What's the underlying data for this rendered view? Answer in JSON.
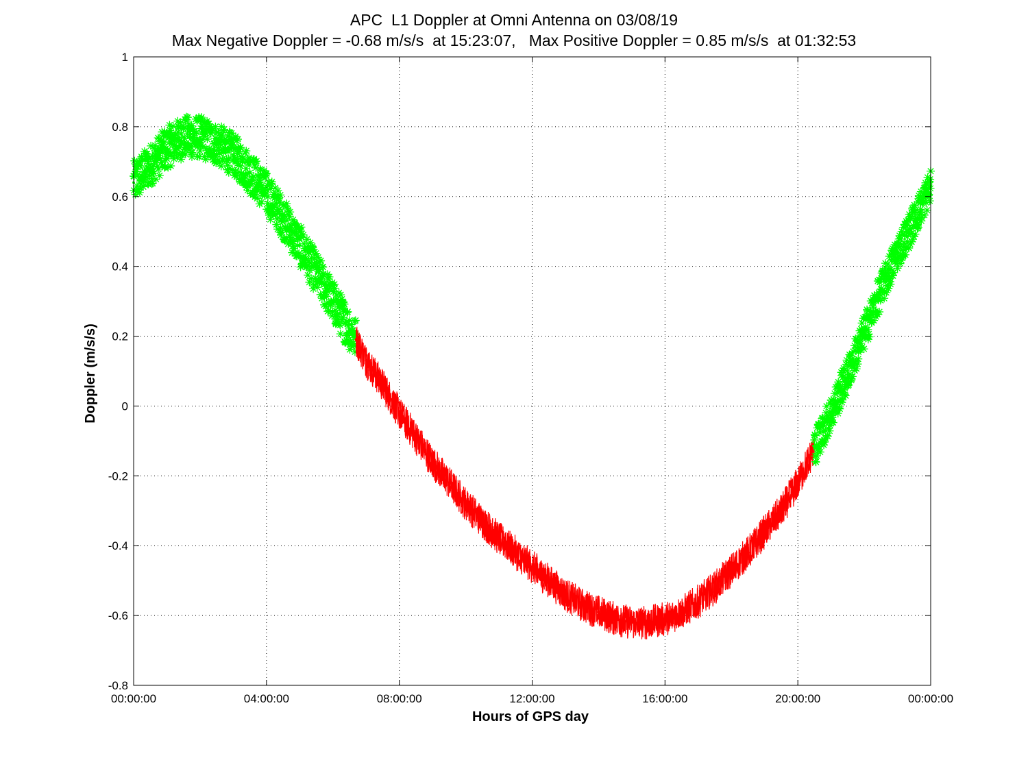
{
  "chart_data": {
    "type": "scatter",
    "title": "APC  L1 Doppler at Omni Antenna on 03/08/19",
    "subtitle": "Max Negative Doppler = -0.68 m/s/s  at 15:23:07,   Max Positive Doppler = 0.85 m/s/s  at 01:32:53",
    "xlabel": "Hours of GPS day",
    "ylabel": "Doppler (m/s/s)",
    "xlim": [
      0,
      24
    ],
    "ylim": [
      -0.8,
      1
    ],
    "x_unit": "hours",
    "x_tick_values": [
      0,
      4,
      8,
      12,
      16,
      20,
      24
    ],
    "x_tick_labels": [
      "00:00:00",
      "04:00:00",
      "08:00:00",
      "12:00:00",
      "16:00:00",
      "20:00:00",
      "00:00:00"
    ],
    "y_tick_values": [
      -0.8,
      -0.6,
      -0.4,
      -0.2,
      0,
      0.2,
      0.4,
      0.6,
      0.8,
      1
    ],
    "y_tick_labels": [
      "-0.8",
      "-0.6",
      "-0.4",
      "-0.2",
      "0",
      "0.2",
      "0.4",
      "0.6",
      "0.8",
      "1"
    ],
    "grid": true,
    "grid_style": "dotted",
    "series": [
      {
        "color": "#00ff00",
        "marker": "asterisk",
        "spread": 0.06,
        "x": [
          0.0,
          0.5,
          1.0,
          1.5,
          2.0,
          2.5,
          3.0,
          3.5,
          4.0,
          4.5,
          5.0,
          5.5,
          6.0,
          6.5,
          6.7
        ],
        "y": [
          0.64,
          0.69,
          0.74,
          0.77,
          0.77,
          0.75,
          0.72,
          0.67,
          0.61,
          0.54,
          0.46,
          0.38,
          0.3,
          0.22,
          0.19
        ]
      },
      {
        "color": "#ff0000",
        "marker": "line",
        "spread": 0.05,
        "x": [
          6.7,
          7.0,
          7.5,
          8.0,
          8.5,
          9.0,
          9.5,
          10.0,
          10.5,
          11.0,
          11.5,
          12.0,
          12.5,
          13.0,
          13.5,
          14.0,
          14.5,
          15.0,
          15.5,
          16.0,
          16.5,
          17.0,
          17.5,
          18.0,
          18.5,
          19.0,
          19.5,
          20.0,
          20.5
        ],
        "y": [
          0.19,
          0.13,
          0.06,
          -0.02,
          -0.09,
          -0.16,
          -0.22,
          -0.28,
          -0.33,
          -0.38,
          -0.42,
          -0.46,
          -0.5,
          -0.54,
          -0.57,
          -0.59,
          -0.61,
          -0.62,
          -0.62,
          -0.61,
          -0.59,
          -0.56,
          -0.52,
          -0.47,
          -0.42,
          -0.36,
          -0.3,
          -0.22,
          -0.12
        ]
      },
      {
        "color": "#00ff00",
        "marker": "asterisk",
        "spread": 0.05,
        "x": [
          20.5,
          21.0,
          21.5,
          22.0,
          22.5,
          23.0,
          23.5,
          24.0
        ],
        "y": [
          -0.12,
          -0.02,
          0.09,
          0.21,
          0.33,
          0.44,
          0.53,
          0.63
        ]
      }
    ]
  }
}
